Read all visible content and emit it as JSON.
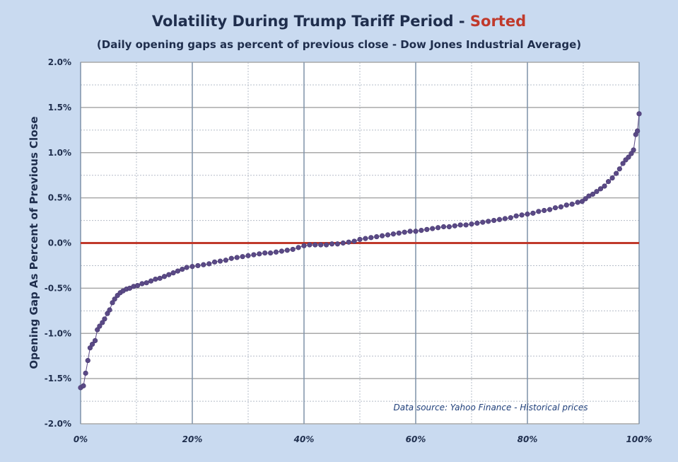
{
  "chart_data": {
    "type": "scatter",
    "title": "Volatility During Trump Tariff Period - ",
    "title_highlight": "Sorted",
    "subtitle": "(Daily opening gaps as percent of previous close - Dow Jones Industrial Average)",
    "xlabel": "",
    "ylabel": "Opening Gap As Percent of Previous Close",
    "source_note": "Data source: Yahoo Finance - Historical prices",
    "xlim": [
      0,
      100
    ],
    "ylim": [
      -2.0,
      2.0
    ],
    "x_ticks": [
      0,
      20,
      40,
      60,
      80,
      100
    ],
    "x_tick_labels": [
      "0%",
      "20%",
      "40%",
      "60%",
      "80%",
      "100%"
    ],
    "y_ticks": [
      2.0,
      1.5,
      1.0,
      0.5,
      0.0,
      -0.5,
      -1.0,
      -1.5,
      -2.0
    ],
    "y_tick_labels": [
      "2.0%",
      "1.5%",
      "1.0%",
      "0.5%",
      "0.0%",
      "-0.5%",
      "-1.0%",
      "-1.5%",
      "-2.0%"
    ],
    "grid": true,
    "reference_line": {
      "y": 0.0,
      "color": "#c0392b"
    },
    "series": [
      {
        "color": "#5b4a86",
        "points": [
          [
            0.0,
            -1.6
          ],
          [
            0.5,
            -1.58
          ],
          [
            0.9,
            -1.44
          ],
          [
            1.3,
            -1.3
          ],
          [
            1.7,
            -1.16
          ],
          [
            2.1,
            -1.12
          ],
          [
            2.6,
            -1.08
          ],
          [
            3.0,
            -0.96
          ],
          [
            3.4,
            -0.92
          ],
          [
            3.9,
            -0.88
          ],
          [
            4.3,
            -0.84
          ],
          [
            4.8,
            -0.78
          ],
          [
            5.2,
            -0.74
          ],
          [
            5.7,
            -0.66
          ],
          [
            6.1,
            -0.62
          ],
          [
            6.6,
            -0.58
          ],
          [
            7.1,
            -0.55
          ],
          [
            7.6,
            -0.53
          ],
          [
            8.2,
            -0.51
          ],
          [
            8.8,
            -0.5
          ],
          [
            9.5,
            -0.48
          ],
          [
            10.2,
            -0.47
          ],
          [
            11.0,
            -0.45
          ],
          [
            11.8,
            -0.44
          ],
          [
            12.6,
            -0.42
          ],
          [
            13.4,
            -0.4
          ],
          [
            14.2,
            -0.39
          ],
          [
            15.0,
            -0.37
          ],
          [
            15.8,
            -0.35
          ],
          [
            16.6,
            -0.33
          ],
          [
            17.4,
            -0.31
          ],
          [
            18.2,
            -0.29
          ],
          [
            19.0,
            -0.27
          ],
          [
            20.0,
            -0.26
          ],
          [
            21.0,
            -0.25
          ],
          [
            22.0,
            -0.24
          ],
          [
            23.0,
            -0.23
          ],
          [
            24.0,
            -0.21
          ],
          [
            25.0,
            -0.2
          ],
          [
            26.0,
            -0.19
          ],
          [
            27.0,
            -0.17
          ],
          [
            28.0,
            -0.16
          ],
          [
            29.0,
            -0.15
          ],
          [
            30.0,
            -0.14
          ],
          [
            31.0,
            -0.13
          ],
          [
            32.0,
            -0.12
          ],
          [
            33.0,
            -0.11
          ],
          [
            34.0,
            -0.11
          ],
          [
            35.0,
            -0.1
          ],
          [
            36.0,
            -0.09
          ],
          [
            37.0,
            -0.08
          ],
          [
            38.0,
            -0.07
          ],
          [
            39.0,
            -0.05
          ],
          [
            40.0,
            -0.03
          ],
          [
            41.0,
            -0.02
          ],
          [
            42.0,
            -0.02
          ],
          [
            43.0,
            -0.02
          ],
          [
            44.0,
            -0.02
          ],
          [
            45.0,
            -0.01
          ],
          [
            46.0,
            -0.01
          ],
          [
            47.0,
            0.0
          ],
          [
            48.0,
            0.01
          ],
          [
            49.0,
            0.02
          ],
          [
            50.0,
            0.04
          ],
          [
            51.0,
            0.05
          ],
          [
            52.0,
            0.06
          ],
          [
            53.0,
            0.07
          ],
          [
            54.0,
            0.08
          ],
          [
            55.0,
            0.09
          ],
          [
            56.0,
            0.1
          ],
          [
            57.0,
            0.11
          ],
          [
            58.0,
            0.12
          ],
          [
            59.0,
            0.13
          ],
          [
            60.0,
            0.13
          ],
          [
            61.0,
            0.14
          ],
          [
            62.0,
            0.15
          ],
          [
            63.0,
            0.16
          ],
          [
            64.0,
            0.17
          ],
          [
            65.0,
            0.18
          ],
          [
            66.0,
            0.18
          ],
          [
            67.0,
            0.19
          ],
          [
            68.0,
            0.2
          ],
          [
            69.0,
            0.2
          ],
          [
            70.0,
            0.21
          ],
          [
            71.0,
            0.22
          ],
          [
            72.0,
            0.23
          ],
          [
            73.0,
            0.24
          ],
          [
            74.0,
            0.25
          ],
          [
            75.0,
            0.26
          ],
          [
            76.0,
            0.27
          ],
          [
            77.0,
            0.28
          ],
          [
            78.0,
            0.3
          ],
          [
            79.0,
            0.31
          ],
          [
            80.0,
            0.32
          ],
          [
            81.0,
            0.33
          ],
          [
            82.0,
            0.35
          ],
          [
            83.0,
            0.36
          ],
          [
            84.0,
            0.37
          ],
          [
            85.0,
            0.39
          ],
          [
            86.0,
            0.4
          ],
          [
            87.0,
            0.42
          ],
          [
            88.0,
            0.43
          ],
          [
            89.0,
            0.45
          ],
          [
            89.8,
            0.46
          ],
          [
            90.4,
            0.49
          ],
          [
            91.0,
            0.52
          ],
          [
            91.7,
            0.54
          ],
          [
            92.4,
            0.57
          ],
          [
            93.1,
            0.6
          ],
          [
            93.8,
            0.63
          ],
          [
            94.5,
            0.68
          ],
          [
            95.2,
            0.72
          ],
          [
            95.9,
            0.77
          ],
          [
            96.5,
            0.82
          ],
          [
            97.1,
            0.88
          ],
          [
            97.6,
            0.92
          ],
          [
            98.1,
            0.95
          ],
          [
            98.6,
            0.99
          ],
          [
            99.0,
            1.03
          ],
          [
            99.4,
            1.2
          ],
          [
            99.7,
            1.24
          ],
          [
            100.0,
            1.43
          ]
        ]
      }
    ]
  }
}
